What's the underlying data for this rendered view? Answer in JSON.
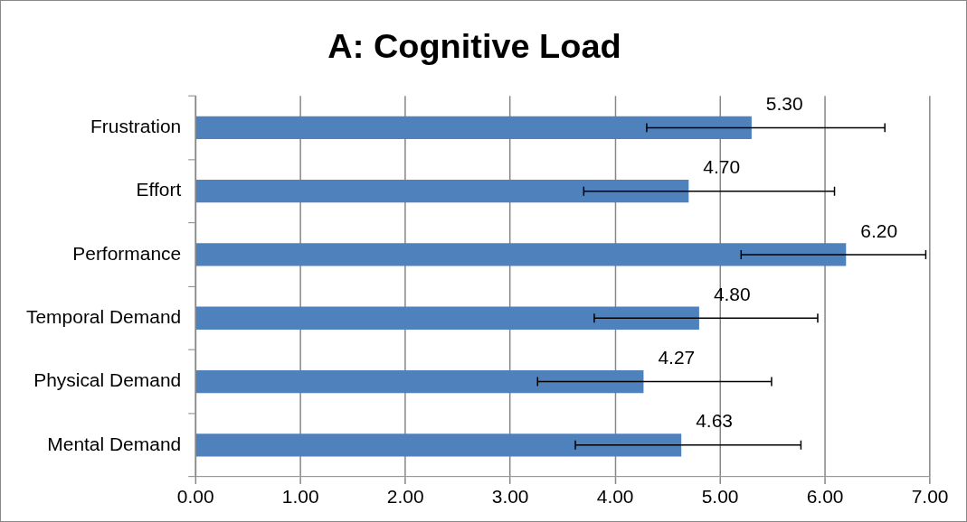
{
  "chart_data": {
    "type": "bar",
    "orientation": "horizontal",
    "title": "A: Cognitive Load",
    "categories": [
      "Frustration",
      "Effort",
      "Performance",
      "Temporal Demand",
      "Physical Demand",
      "Mental Demand"
    ],
    "values": [
      5.3,
      4.7,
      6.2,
      4.8,
      4.27,
      4.63
    ],
    "value_labels": [
      "5.30",
      "4.70",
      "6.20",
      "4.80",
      "4.27",
      "4.63"
    ],
    "errors": [
      [
        4.3,
        6.57
      ],
      [
        3.7,
        6.09
      ],
      [
        5.2,
        6.96
      ],
      [
        3.8,
        5.93
      ],
      [
        3.26,
        5.49
      ],
      [
        3.62,
        5.77
      ]
    ],
    "color": "#4f81bd",
    "xlim": [
      0,
      7
    ],
    "xticks": [
      {
        "value": 0,
        "label": "0.00"
      },
      {
        "value": 1,
        "label": "1.00"
      },
      {
        "value": 2,
        "label": "2.00"
      },
      {
        "value": 3,
        "label": "3.00"
      },
      {
        "value": 4,
        "label": "4.00"
      },
      {
        "value": 5,
        "label": "5.00"
      },
      {
        "value": 6,
        "label": "6.00"
      },
      {
        "value": 7,
        "label": "7.00"
      }
    ],
    "grid": "x",
    "legend": false
  }
}
